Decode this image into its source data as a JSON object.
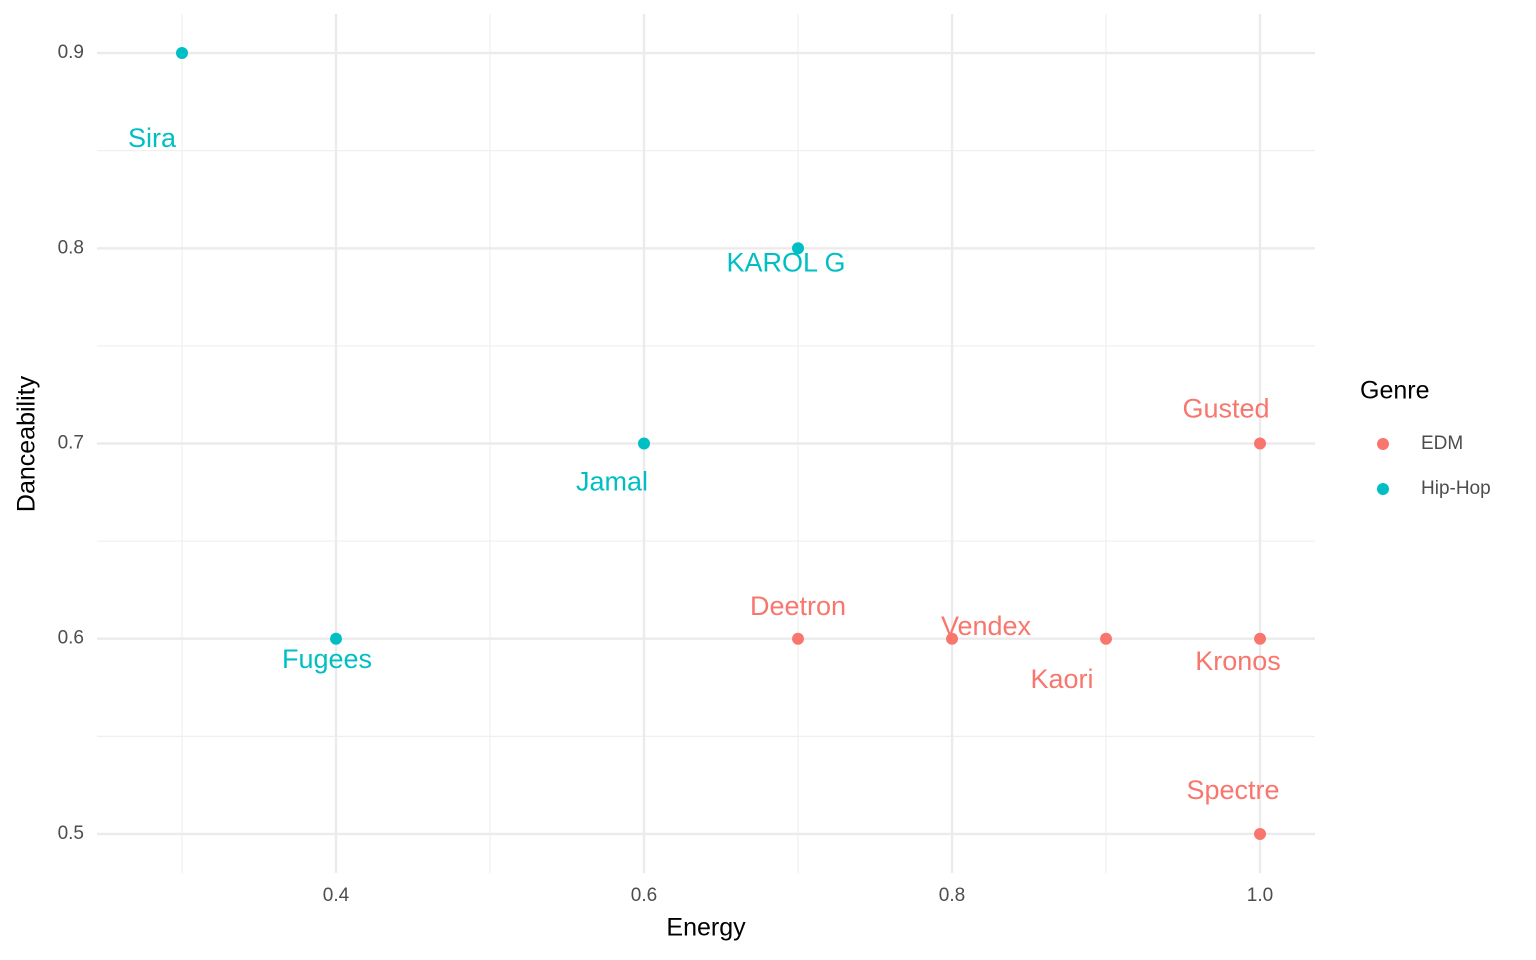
{
  "chart_data": {
    "type": "scatter",
    "x_label": "Energy",
    "y_label": "Danceability",
    "xlim": [
      0.2448,
      1.0357
    ],
    "ylim": [
      0.48,
      0.92
    ],
    "xticks": [
      0.4,
      0.6,
      0.8,
      {
        "value": 1,
        "label": "1.0"
      }
    ],
    "yticks": [
      0.5,
      0.6,
      0.7,
      0.8,
      0.9
    ],
    "grid": true,
    "minor_grid": true,
    "legend_title": "Genre",
    "legend": "right",
    "series": [
      {
        "name": "EDM",
        "color": "#F8766D",
        "x": [
          1.0,
          0.7,
          0.8,
          0.9,
          1.0,
          1.0
        ],
        "values": [
          0.7,
          0.6,
          0.6,
          0.6,
          0.6,
          0.5
        ],
        "labels": [
          "Gusted",
          "Deetron",
          "Vendex",
          "Kaori",
          "Kronos",
          "Spectre"
        ]
      },
      {
        "name": "Hip-Hop",
        "color": "#00BFC4",
        "x": [
          0.3,
          0.7,
          0.6,
          0.4
        ],
        "values": [
          0.9,
          0.8,
          0.7,
          0.6
        ],
        "labels": [
          "Sira",
          "KAROL G",
          "Jamal",
          "Fugees"
        ]
      }
    ]
  }
}
